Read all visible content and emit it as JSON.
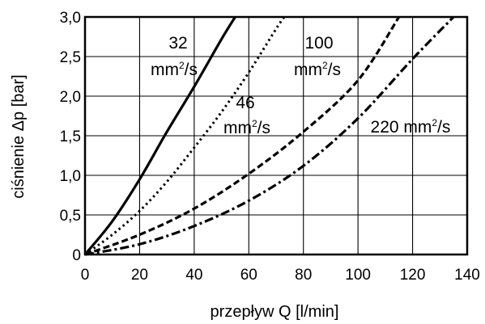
{
  "chart_data": {
    "type": "line",
    "xlabel": "przepływ Q [l/min]",
    "ylabel": "ciśnienie Δp [bar]",
    "xlim": [
      0,
      140
    ],
    "ylim": [
      0,
      3.0
    ],
    "x_ticks": [
      "0",
      "20",
      "40",
      "60",
      "80",
      "100",
      "120",
      "140"
    ],
    "y_ticks": [
      "0",
      "0,5",
      "1,0",
      "1,5",
      "2,0",
      "2,5",
      "3,0"
    ],
    "grid": true,
    "series": [
      {
        "name": "32 mm²/s",
        "label_parts": [
          "32",
          "mm",
          "2",
          "/s"
        ],
        "style": "solid",
        "x": [
          0,
          10,
          20,
          30,
          40,
          50,
          55
        ],
        "y": [
          0,
          0.42,
          0.95,
          1.55,
          2.12,
          2.72,
          3.0
        ]
      },
      {
        "name": "46 mm²/s",
        "label_parts": [
          "46",
          "mm",
          "2",
          "/s"
        ],
        "style": "dotted",
        "x": [
          0,
          10,
          20,
          30,
          40,
          50,
          60,
          70,
          73
        ],
        "y": [
          0,
          0.25,
          0.55,
          0.92,
          1.35,
          1.8,
          2.3,
          2.85,
          3.0
        ]
      },
      {
        "name": "100 mm²/s",
        "label_parts": [
          "100",
          "mm",
          "2",
          "/s"
        ],
        "style": "dashed",
        "x": [
          0,
          20,
          40,
          60,
          80,
          100,
          115
        ],
        "y": [
          0,
          0.25,
          0.58,
          1.02,
          1.55,
          2.2,
          3.0
        ]
      },
      {
        "name": "220 mm²/s",
        "label_parts": [
          "220 mm",
          "2",
          "/s"
        ],
        "style": "dashdot",
        "x": [
          0,
          20,
          40,
          60,
          80,
          100,
          120,
          135
        ],
        "y": [
          0,
          0.13,
          0.36,
          0.68,
          1.12,
          1.72,
          2.47,
          3.0
        ]
      }
    ]
  }
}
